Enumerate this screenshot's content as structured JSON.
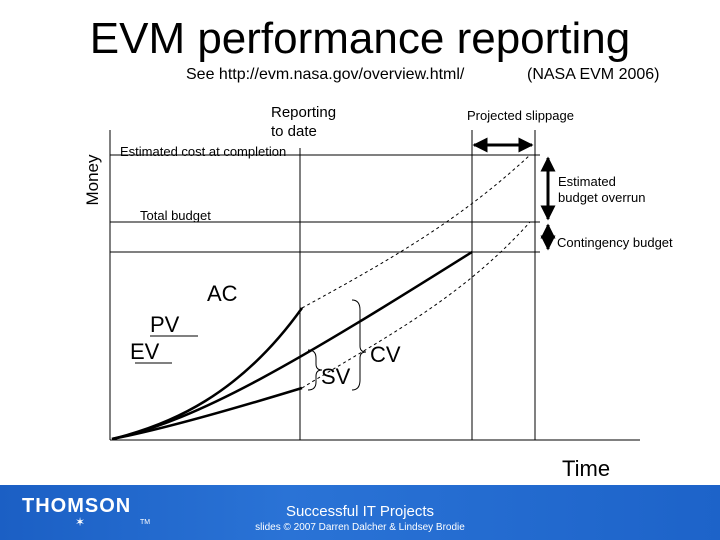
{
  "title": "EVM performance reporting",
  "subtitle": "See http://evm.nasa.gov/overview.html/",
  "subtitle_source": "(NASA EVM 2006)",
  "diagram": {
    "y_axis_label": "Money",
    "x_axis_label": "Time",
    "labels": {
      "reporting_to_date_line1": "Reporting",
      "reporting_to_date_line2": "to date",
      "projected_slippage": "Projected slippage",
      "estimated_cost_at_completion": "Estimated cost at completion",
      "estimated_budget_overrun_line1": "Estimated",
      "estimated_budget_overrun_line2": "budget overrun",
      "total_budget": "Total budget",
      "contingency_budget": "Contingency budget",
      "ac": "AC",
      "pv": "PV",
      "ev": "EV",
      "sv": "SV",
      "cv": "CV"
    }
  },
  "footer": {
    "logo": "THOMSON",
    "logo_star": "✶",
    "logo_tm": "TM",
    "title": "Successful IT Projects",
    "credit": "slides © 2007 Darren Dalcher & Lindsey Brodie"
  }
}
